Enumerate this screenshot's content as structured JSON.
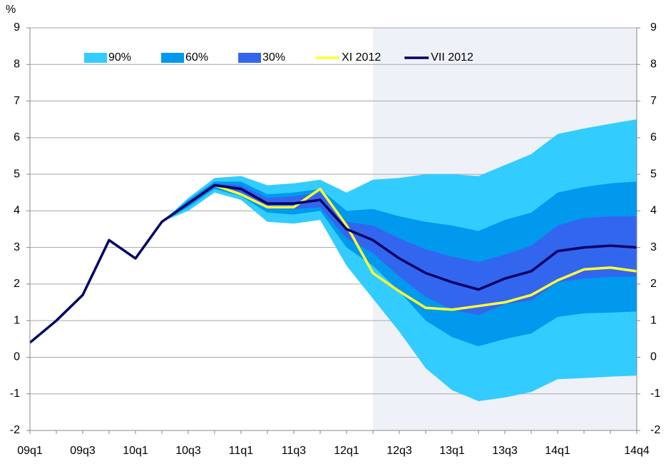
{
  "chart_data": {
    "type": "fan",
    "y_label": "%",
    "categories": [
      "09q1",
      null,
      "09q3",
      null,
      "10q1",
      null,
      "10q3",
      null,
      "11q1",
      null,
      "11q3",
      null,
      "12q1",
      null,
      "12q3",
      null,
      "13q1",
      null,
      "13q3",
      null,
      "14q1",
      null,
      null,
      "14q4"
    ],
    "shaded_from": 13,
    "ylim": [
      -2,
      9
    ],
    "yticks": [
      -2,
      -1,
      0,
      1,
      2,
      3,
      4,
      5,
      6,
      7,
      8,
      9
    ],
    "y2lim": [
      -2,
      9
    ],
    "y2ticks": [
      -2,
      -1,
      0,
      1,
      2,
      3,
      4,
      5,
      6,
      7,
      8,
      9
    ],
    "grid": true,
    "legend": "top-left",
    "bands": [
      {
        "name": "90%",
        "color": "#33ccff",
        "upper": [
          null,
          null,
          null,
          null,
          null,
          3.7,
          4.35,
          4.9,
          4.95,
          4.7,
          4.75,
          4.85,
          4.5,
          4.85,
          4.9,
          5.0,
          5.0,
          4.95,
          5.25,
          5.55,
          6.1,
          6.25,
          6.38,
          6.5
        ],
        "lower": [
          null,
          null,
          null,
          null,
          null,
          3.7,
          4.0,
          4.5,
          4.3,
          3.7,
          3.65,
          3.75,
          2.5,
          1.6,
          0.7,
          -0.3,
          -0.9,
          -1.2,
          -1.1,
          -0.95,
          -0.6,
          -0.57,
          -0.53,
          -0.5
        ]
      },
      {
        "name": "60%",
        "color": "#0099ee",
        "upper": [
          null,
          null,
          null,
          null,
          null,
          3.7,
          4.3,
          4.8,
          4.8,
          4.45,
          4.5,
          4.6,
          4.0,
          4.05,
          3.85,
          3.7,
          3.6,
          3.45,
          3.75,
          3.95,
          4.5,
          4.65,
          4.75,
          4.8
        ],
        "lower": [
          null,
          null,
          null,
          null,
          null,
          3.7,
          4.1,
          4.6,
          4.4,
          3.95,
          3.9,
          4.0,
          3.0,
          2.5,
          1.8,
          1.0,
          0.55,
          0.3,
          0.5,
          0.65,
          1.1,
          1.2,
          1.22,
          1.25
        ]
      },
      {
        "name": "30%",
        "color": "#3366ee",
        "upper": [
          null,
          null,
          null,
          null,
          null,
          3.7,
          4.25,
          4.75,
          4.7,
          4.35,
          4.4,
          4.5,
          3.7,
          3.6,
          3.25,
          2.95,
          2.75,
          2.6,
          2.8,
          3.05,
          3.6,
          3.8,
          3.85,
          3.85
        ],
        "lower": [
          null,
          null,
          null,
          null,
          null,
          3.7,
          4.15,
          4.65,
          4.5,
          4.1,
          4.05,
          4.1,
          3.25,
          2.85,
          2.2,
          1.65,
          1.3,
          1.15,
          1.45,
          1.55,
          2.05,
          2.15,
          2.2,
          2.2
        ]
      }
    ],
    "series": [
      {
        "name": "XI 2012",
        "color": "#ffff33",
        "values": [
          null,
          null,
          null,
          null,
          null,
          null,
          null,
          4.7,
          4.45,
          4.1,
          4.1,
          4.6,
          3.6,
          2.3,
          1.8,
          1.35,
          1.3,
          1.4,
          1.5,
          1.7,
          2.1,
          2.4,
          2.45,
          2.35
        ]
      },
      {
        "name": "VII 2012",
        "color": "#000066",
        "values": [
          0.4,
          1.0,
          1.7,
          3.2,
          2.7,
          3.7,
          4.2,
          4.7,
          4.6,
          4.2,
          4.2,
          4.3,
          3.5,
          3.2,
          2.7,
          2.3,
          2.05,
          1.85,
          2.15,
          2.35,
          2.9,
          3.0,
          3.05,
          3.0
        ]
      }
    ]
  }
}
